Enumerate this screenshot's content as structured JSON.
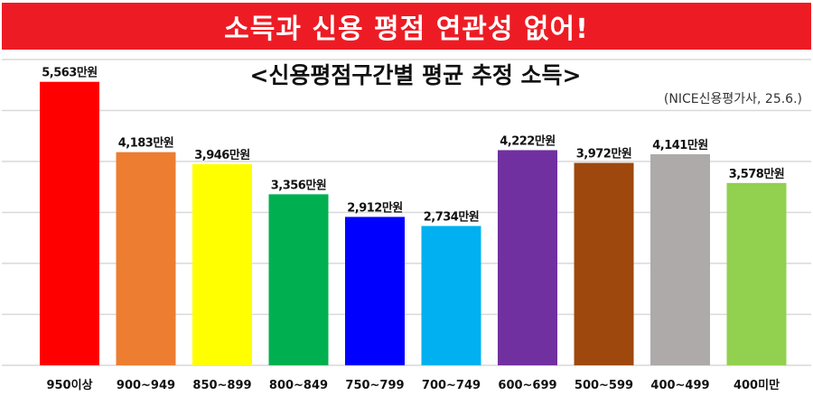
{
  "banner": {
    "title": "소득과 신용 평점 연관성 없어!",
    "color": "#ED1C24"
  },
  "chart_data": {
    "type": "bar",
    "title": "<신용평점구간별 평균 추정 소득>",
    "source": "(NICE신용평가사, 25.6.)",
    "categories": [
      "950이상",
      "900~949",
      "850~899",
      "800~849",
      "750~799",
      "700~749",
      "600~699",
      "500~599",
      "400~499",
      "400미만"
    ],
    "values": [
      5563,
      4183,
      3946,
      3356,
      2912,
      2734,
      4222,
      3972,
      4141,
      3578
    ],
    "value_labels": [
      "5,563만원",
      "4,183만원",
      "3,946만원",
      "3,356만원",
      "2,912만원",
      "2,734만원",
      "4,222만원",
      "3,972만원",
      "4,141만원",
      "3,578만원"
    ],
    "colors": [
      "#FF0000",
      "#ED7D31",
      "#FFFF00",
      "#00B050",
      "#0000FF",
      "#00B0F0",
      "#7030A0",
      "#9E480E",
      "#AEAAAA",
      "#92D050"
    ],
    "xlabel": "",
    "ylabel": "",
    "ylim": [
      0,
      6000
    ],
    "grid": true
  }
}
